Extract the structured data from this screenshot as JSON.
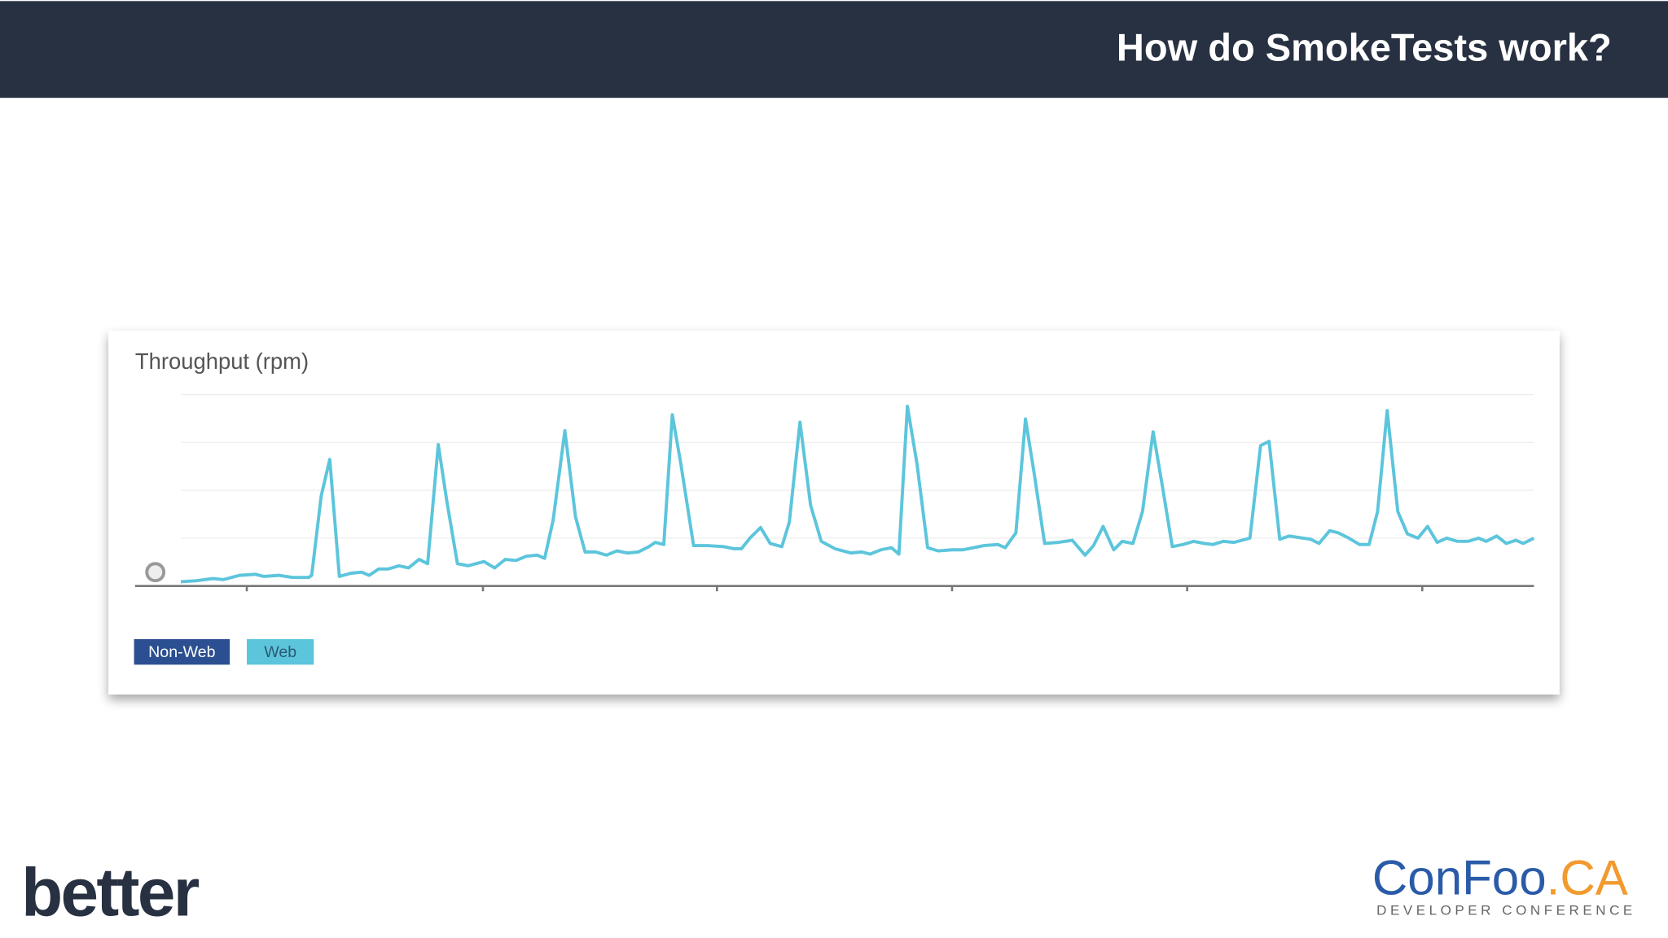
{
  "header": {
    "title": "How do SmokeTests work?"
  },
  "chart_data": {
    "type": "line",
    "title": "Throughput (rpm)",
    "x": [
      43,
      58,
      73,
      83,
      98,
      113,
      121,
      135,
      148,
      163,
      166,
      175,
      183,
      192,
      203,
      213,
      220,
      229,
      238,
      248,
      257,
      267,
      275,
      285,
      293,
      303,
      313,
      328,
      338,
      348,
      358,
      368,
      378,
      385,
      393,
      404,
      414,
      423,
      433,
      443,
      453,
      463,
      473,
      483,
      489,
      497,
      505,
      513,
      525,
      538,
      553,
      563,
      570,
      578,
      588,
      597,
      608,
      615,
      625,
      635,
      645,
      658,
      673,
      683,
      691,
      701,
      711,
      718,
      726,
      735,
      745,
      755,
      768,
      778,
      788,
      798,
      811,
      818,
      828,
      837,
      845,
      855,
      868,
      881,
      893,
      901,
      910,
      920,
      928,
      938,
      947,
      957,
      966,
      975,
      985,
      995,
      1005,
      1013,
      1023,
      1033,
      1048,
      1058,
      1066,
      1076,
      1085,
      1098,
      1105,
      1113,
      1123,
      1131,
      1141,
      1151,
      1160,
      1168,
      1177,
      1187,
      1196,
      1206,
      1215,
      1224,
      1233,
      1243,
      1253,
      1263,
      1270,
      1280,
      1289,
      1298,
      1305,
      1315
    ],
    "series": [
      {
        "color": "#5cc5dc",
        "values": [
          4,
          5,
          7,
          6,
          10,
          11,
          9,
          10,
          8,
          8,
          10,
          85,
          119,
          9,
          12,
          13,
          10,
          16,
          16,
          19,
          17,
          25,
          21,
          133,
          80,
          21,
          19,
          23,
          17,
          25,
          24,
          28,
          29,
          26,
          62,
          146,
          65,
          32,
          32,
          29,
          33,
          31,
          32,
          37,
          41,
          39,
          161,
          115,
          38,
          38,
          37,
          35,
          35,
          45,
          55,
          40,
          37,
          60,
          154,
          76,
          42,
          35,
          31,
          32,
          30,
          34,
          36,
          30,
          169,
          115,
          36,
          33,
          34,
          34,
          36,
          38,
          39,
          36,
          50,
          157,
          107,
          40,
          41,
          43,
          29,
          38,
          56,
          34,
          42,
          40,
          70,
          145,
          92,
          37,
          39,
          42,
          40,
          39,
          42,
          41,
          45,
          132,
          136,
          44,
          47,
          45,
          44,
          40,
          52,
          50,
          45,
          39,
          39,
          70,
          165,
          70,
          49,
          45,
          56,
          41,
          45,
          42,
          42,
          45,
          42,
          47,
          40,
          43,
          40,
          45
        ]
      }
    ],
    "legend": [
      {
        "name": "Non-Web",
        "color": "#2b4f90"
      },
      {
        "name": "Web",
        "color": "#5cc5dc"
      }
    ],
    "xlim": [
      0,
      1315
    ],
    "xticks": [
      105,
      327,
      547,
      768,
      989,
      1210
    ],
    "ylim": [
      0,
      180
    ],
    "gridlines": [
      45,
      90,
      135,
      180
    ]
  },
  "footer": {
    "left_logo": "better",
    "right_logo": "ConFoo",
    "right_logo_suffix": ".CA",
    "right_logo_tagline": "DEVELOPER CONFERENCE"
  }
}
